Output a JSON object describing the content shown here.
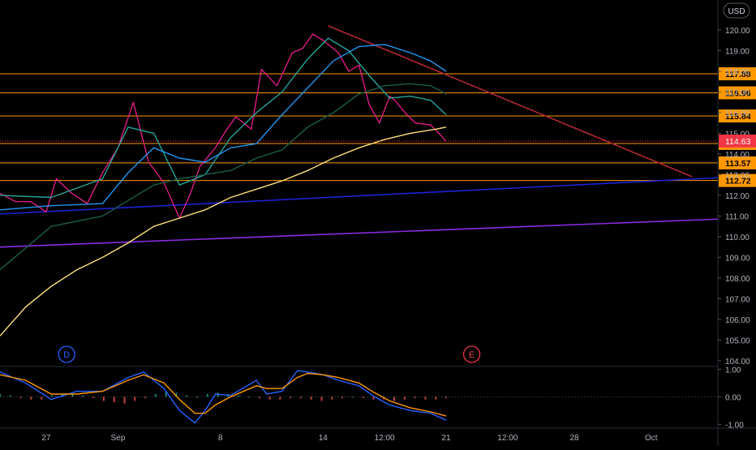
{
  "currency_label": "USD",
  "main_chart": {
    "type": "line",
    "y_range": [
      103.8,
      121.45
    ],
    "y_ticks": [
      "120.00",
      "119.00",
      "118.00",
      "117.00",
      "116.00",
      "115.00",
      "114.00",
      "113.00",
      "112.00",
      "111.00",
      "110.00",
      "109.00",
      "108.00",
      "107.00",
      "106.00",
      "105.00",
      "104.00"
    ],
    "last_price": "114.63",
    "last_price_color": "#f23645",
    "horizontal_levels": [
      {
        "label": "117.88",
        "value": 117.88
      },
      {
        "label": "116.96",
        "value": 116.96
      },
      {
        "label": "115.84",
        "value": 115.84
      },
      {
        "label": "114.51",
        "value": 114.51
      },
      {
        "label": "113.57",
        "value": 113.57
      },
      {
        "label": "112.72",
        "value": 112.72
      }
    ],
    "level_color": "#ff9800",
    "trendlines": [
      {
        "name": "resistance",
        "color": "#b22833",
        "from": [
          64,
          120.2
        ],
        "to": [
          135,
          112.9
        ]
      },
      {
        "name": "support-blue",
        "color": "#1e22d8",
        "from": [
          0,
          111.1
        ],
        "to": [
          140,
          112.85
        ]
      },
      {
        "name": "support-purple",
        "color": "#8a2be2",
        "from": [
          0,
          109.5
        ],
        "to": [
          140,
          110.85
        ]
      }
    ],
    "markers": [
      {
        "label": "D",
        "x": 13,
        "color": "#2962ff"
      },
      {
        "label": "E",
        "x": 92,
        "color": "#f23645"
      }
    ],
    "series": [
      {
        "name": "price",
        "color": "#e91e8c",
        "x": [
          0,
          3,
          6,
          9,
          11,
          14,
          17,
          20,
          23,
          26,
          29,
          32,
          35,
          37,
          39,
          42,
          44,
          46,
          49,
          51,
          54,
          57,
          59,
          61,
          63,
          66,
          68,
          70,
          72,
          74,
          76,
          77,
          79,
          81,
          84,
          86,
          87
        ],
        "y": [
          112.1,
          111.7,
          111.7,
          111.2,
          112.8,
          112.1,
          111.6,
          113.1,
          114.3,
          116.5,
          113.6,
          112.6,
          110.9,
          112.0,
          113.4,
          114.3,
          115.1,
          115.8,
          115.2,
          118.1,
          117.3,
          118.9,
          119.1,
          119.8,
          119.5,
          118.9,
          118.0,
          118.3,
          116.4,
          115.5,
          116.8,
          116.6,
          116.0,
          115.5,
          115.4,
          114.9,
          114.6
        ]
      },
      {
        "name": "ema-fast",
        "color": "#26a69a",
        "x": [
          0,
          10,
          20,
          25,
          30,
          35,
          40,
          45,
          50,
          55,
          60,
          64,
          68,
          72,
          76,
          80,
          84,
          87
        ],
        "y": [
          112.0,
          111.9,
          112.8,
          115.3,
          115.0,
          112.5,
          113.0,
          114.8,
          116.0,
          117.0,
          118.6,
          119.6,
          119.0,
          117.8,
          116.7,
          116.8,
          116.6,
          115.9
        ]
      },
      {
        "name": "ema-mid",
        "color": "#2196f3",
        "x": [
          0,
          10,
          20,
          25,
          30,
          35,
          40,
          45,
          50,
          55,
          60,
          65,
          70,
          75,
          80,
          84,
          87
        ],
        "y": [
          111.3,
          111.5,
          111.6,
          113.1,
          114.3,
          113.8,
          113.6,
          114.3,
          114.5,
          115.9,
          117.2,
          118.5,
          119.2,
          119.3,
          118.9,
          118.5,
          118.0
        ]
      },
      {
        "name": "ema-slow",
        "color": "#1b5e4a",
        "x": [
          0,
          10,
          20,
          30,
          35,
          40,
          45,
          50,
          55,
          60,
          65,
          70,
          75,
          80,
          84,
          87
        ],
        "y": [
          108.4,
          110.5,
          111.0,
          112.5,
          112.8,
          113.0,
          113.2,
          113.8,
          114.2,
          115.3,
          116.0,
          116.9,
          117.3,
          117.4,
          117.3,
          116.9
        ]
      },
      {
        "name": "sma-200",
        "color": "#ffe07a",
        "x": [
          0,
          5,
          10,
          15,
          20,
          25,
          30,
          35,
          40,
          45,
          50,
          55,
          60,
          65,
          70,
          75,
          80,
          85,
          87
        ],
        "y": [
          105.2,
          106.6,
          107.6,
          108.4,
          109.0,
          109.7,
          110.5,
          110.9,
          111.3,
          111.9,
          112.3,
          112.7,
          113.2,
          113.8,
          114.3,
          114.7,
          115.0,
          115.2,
          115.3
        ]
      }
    ]
  },
  "oscillator": {
    "type": "line",
    "y_range": [
      -1.05,
      1.1
    ],
    "y_ticks": [
      "1.00",
      "0.00",
      "-1.00"
    ],
    "series": [
      {
        "name": "macd",
        "color": "#2962ff",
        "x": [
          0,
          5,
          10,
          15,
          20,
          25,
          28,
          32,
          35,
          38,
          40,
          42,
          45,
          50,
          52,
          55,
          58,
          60,
          63,
          66,
          70,
          73,
          76,
          80,
          84,
          87
        ],
        "y": [
          0.9,
          0.5,
          -0.1,
          0.2,
          0.2,
          0.7,
          0.9,
          0.3,
          -0.5,
          -0.95,
          -0.5,
          0.1,
          0.05,
          0.6,
          0.1,
          0.2,
          0.95,
          0.9,
          0.8,
          0.6,
          0.4,
          0.0,
          -0.3,
          -0.5,
          -0.6,
          -0.85
        ]
      },
      {
        "name": "signal",
        "color": "#ff9800",
        "x": [
          0,
          5,
          10,
          15,
          20,
          25,
          28,
          32,
          35,
          38,
          40,
          42,
          45,
          50,
          52,
          55,
          58,
          60,
          63,
          66,
          70,
          73,
          76,
          80,
          84,
          87
        ],
        "y": [
          0.8,
          0.6,
          0.1,
          0.1,
          0.2,
          0.6,
          0.8,
          0.5,
          -0.1,
          -0.6,
          -0.6,
          -0.3,
          0.0,
          0.4,
          0.3,
          0.3,
          0.7,
          0.85,
          0.8,
          0.7,
          0.5,
          0.15,
          -0.15,
          -0.4,
          -0.55,
          -0.7
        ]
      }
    ],
    "histogram": [
      0.1,
      0.05,
      -0.05,
      -0.1,
      -0.1,
      0.05,
      0.1,
      0.1,
      0.05,
      -0.05,
      -0.15,
      -0.2,
      -0.25,
      -0.15,
      -0.05,
      0.1,
      0.2,
      0.15,
      0.05,
      0.0,
      0.1,
      0.15,
      0.1,
      0.05,
      0.0,
      -0.05,
      -0.1,
      -0.1,
      -0.05,
      -0.05,
      -0.1,
      -0.15,
      -0.1,
      -0.05,
      0.0,
      -0.05,
      -0.1,
      -0.1,
      -0.15,
      -0.1,
      -0.05,
      -0.1,
      -0.1,
      -0.05
    ]
  },
  "x_axis": {
    "range": [
      0,
      140
    ],
    "ticks": [
      {
        "label": "27",
        "x": 9
      },
      {
        "label": "Sep",
        "x": 23
      },
      {
        "label": "8",
        "x": 43
      },
      {
        "label": "14",
        "x": 63
      },
      {
        "label": "12:00",
        "x": 75
      },
      {
        "label": "21",
        "x": 87
      },
      {
        "label": "12:00",
        "x": 99
      },
      {
        "label": "28",
        "x": 112
      },
      {
        "label": "Oct",
        "x": 127
      }
    ]
  }
}
